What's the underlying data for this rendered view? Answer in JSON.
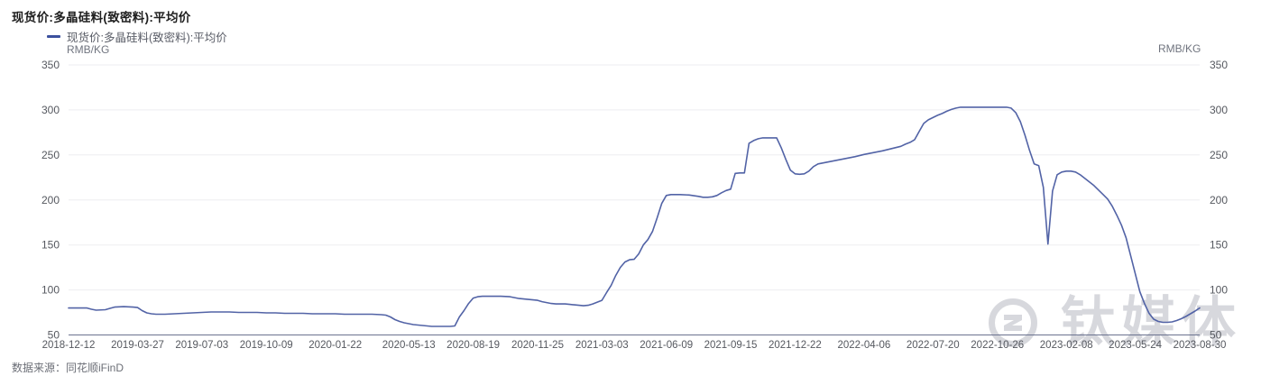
{
  "header": {
    "title": "现货价:多晶硅料(致密料):平均价"
  },
  "legend": {
    "label": "现货价:多晶硅料(致密料):平均价",
    "marker_color": "#3c509e",
    "unit_left": "RMB/KG",
    "unit_right": "RMB/KG"
  },
  "watermark": {
    "text": "钛媒体"
  },
  "footer": {
    "source_label": "数据来源：同花顺iFinD"
  },
  "colors": {
    "line": "#5263a6",
    "gridline": "#ededf0",
    "axis_line": "#6b7390",
    "axis_text": "#55585f",
    "watermark": "#d7d8dd"
  },
  "chart_data": {
    "type": "line",
    "title": "现货价:多晶硅料(致密料):平均价",
    "xlabel": "",
    "ylabel": "RMB/KG",
    "ylim": [
      50,
      350
    ],
    "y_ticks": [
      50,
      100,
      150,
      200,
      250,
      300,
      350
    ],
    "grid": true,
    "legend_position": "top-left",
    "x_tick_labels": [
      "2018-12-12",
      "2019-03-27",
      "2019-07-03",
      "2019-10-09",
      "2020-01-22",
      "2020-05-13",
      "2020-08-19",
      "2020-11-25",
      "2021-03-03",
      "2021-06-09",
      "2021-09-15",
      "2021-12-22",
      "2022-04-06",
      "2022-07-20",
      "2022-10-26",
      "2023-02-08",
      "2023-05-24",
      "2023-08-30"
    ],
    "series": [
      {
        "name": "现货价:多晶硅料(致密料):平均价",
        "color": "#5263a6",
        "points": [
          [
            "2018-12-12",
            80
          ],
          [
            "2018-12-26",
            80
          ],
          [
            "2019-01-09",
            80
          ],
          [
            "2019-01-16",
            78.5
          ],
          [
            "2019-01-23",
            77.5
          ],
          [
            "2019-02-06",
            78
          ],
          [
            "2019-02-13",
            79.5
          ],
          [
            "2019-02-20",
            81
          ],
          [
            "2019-03-06",
            81.5
          ],
          [
            "2019-03-20",
            81
          ],
          [
            "2019-03-27",
            80.5
          ],
          [
            "2019-04-03",
            77
          ],
          [
            "2019-04-10",
            74.5
          ],
          [
            "2019-04-17",
            73.5
          ],
          [
            "2019-04-24",
            73
          ],
          [
            "2019-05-08",
            73
          ],
          [
            "2019-05-22",
            73.5
          ],
          [
            "2019-06-05",
            74
          ],
          [
            "2019-06-19",
            74.5
          ],
          [
            "2019-07-03",
            75
          ],
          [
            "2019-07-17",
            75.5
          ],
          [
            "2019-07-31",
            75.5
          ],
          [
            "2019-08-14",
            75.5
          ],
          [
            "2019-08-28",
            75
          ],
          [
            "2019-09-11",
            75
          ],
          [
            "2019-09-25",
            75
          ],
          [
            "2019-10-09",
            74.5
          ],
          [
            "2019-10-23",
            74.5
          ],
          [
            "2019-11-06",
            74
          ],
          [
            "2019-11-20",
            74
          ],
          [
            "2019-12-04",
            74
          ],
          [
            "2019-12-18",
            73.5
          ],
          [
            "2020-01-08",
            73.5
          ],
          [
            "2020-01-22",
            73.5
          ],
          [
            "2020-02-05",
            73
          ],
          [
            "2020-02-19",
            73
          ],
          [
            "2020-03-04",
            73
          ],
          [
            "2020-03-18",
            73
          ],
          [
            "2020-04-01",
            72.5
          ],
          [
            "2020-04-08",
            72
          ],
          [
            "2020-04-15",
            70
          ],
          [
            "2020-04-22",
            67
          ],
          [
            "2020-04-29",
            65
          ],
          [
            "2020-05-06",
            63.5
          ],
          [
            "2020-05-13",
            62.5
          ],
          [
            "2020-05-20",
            61.5
          ],
          [
            "2020-05-27",
            61
          ],
          [
            "2020-06-03",
            60.5
          ],
          [
            "2020-06-10",
            60
          ],
          [
            "2020-06-17",
            59.5
          ],
          [
            "2020-07-01",
            59.5
          ],
          [
            "2020-07-15",
            59.5
          ],
          [
            "2020-07-22",
            60
          ],
          [
            "2020-07-29",
            70
          ],
          [
            "2020-08-05",
            77
          ],
          [
            "2020-08-12",
            85
          ],
          [
            "2020-08-19",
            91
          ],
          [
            "2020-08-26",
            92.5
          ],
          [
            "2020-09-02",
            93
          ],
          [
            "2020-09-16",
            93
          ],
          [
            "2020-09-30",
            93
          ],
          [
            "2020-10-14",
            92.5
          ],
          [
            "2020-10-21",
            91.5
          ],
          [
            "2020-10-28",
            90.5
          ],
          [
            "2020-11-11",
            89.5
          ],
          [
            "2020-11-25",
            88.5
          ],
          [
            "2020-12-02",
            87
          ],
          [
            "2020-12-09",
            86
          ],
          [
            "2020-12-16",
            85
          ],
          [
            "2020-12-23",
            84.5
          ],
          [
            "2021-01-06",
            84.5
          ],
          [
            "2021-01-13",
            84
          ],
          [
            "2021-01-20",
            83.5
          ],
          [
            "2021-01-27",
            83
          ],
          [
            "2021-02-03",
            82.5
          ],
          [
            "2021-02-10",
            83
          ],
          [
            "2021-02-17",
            84.5
          ],
          [
            "2021-02-24",
            86.5
          ],
          [
            "2021-03-03",
            88.5
          ],
          [
            "2021-03-10",
            97
          ],
          [
            "2021-03-17",
            105
          ],
          [
            "2021-03-24",
            116
          ],
          [
            "2021-03-31",
            125
          ],
          [
            "2021-04-07",
            131
          ],
          [
            "2021-04-14",
            133.5
          ],
          [
            "2021-04-21",
            134
          ],
          [
            "2021-04-28",
            140
          ],
          [
            "2021-05-05",
            150
          ],
          [
            "2021-05-12",
            156
          ],
          [
            "2021-05-19",
            165
          ],
          [
            "2021-05-26",
            180
          ],
          [
            "2021-06-02",
            196
          ],
          [
            "2021-06-09",
            205
          ],
          [
            "2021-06-16",
            206
          ],
          [
            "2021-06-30",
            206
          ],
          [
            "2021-07-14",
            205.5
          ],
          [
            "2021-07-28",
            204
          ],
          [
            "2021-08-04",
            203
          ],
          [
            "2021-08-11",
            203
          ],
          [
            "2021-08-18",
            203.5
          ],
          [
            "2021-08-25",
            205
          ],
          [
            "2021-09-01",
            208
          ],
          [
            "2021-09-08",
            210.5
          ],
          [
            "2021-09-15",
            212
          ],
          [
            "2021-09-22",
            229.5
          ],
          [
            "2021-09-29",
            230
          ],
          [
            "2021-10-06",
            230
          ],
          [
            "2021-10-13",
            263
          ],
          [
            "2021-10-20",
            266
          ],
          [
            "2021-10-27",
            268
          ],
          [
            "2021-11-03",
            269
          ],
          [
            "2021-11-17",
            269
          ],
          [
            "2021-11-24",
            269
          ],
          [
            "2021-12-01",
            258
          ],
          [
            "2021-12-08",
            245
          ],
          [
            "2021-12-15",
            233
          ],
          [
            "2021-12-22",
            229
          ],
          [
            "2021-12-29",
            228.5
          ],
          [
            "2022-01-05",
            229
          ],
          [
            "2022-01-12",
            232
          ],
          [
            "2022-01-19",
            237
          ],
          [
            "2022-01-26",
            240
          ],
          [
            "2022-02-09",
            242
          ],
          [
            "2022-02-23",
            244
          ],
          [
            "2022-03-09",
            246
          ],
          [
            "2022-03-23",
            248
          ],
          [
            "2022-04-06",
            250.5
          ],
          [
            "2022-04-20",
            252.5
          ],
          [
            "2022-05-04",
            254.5
          ],
          [
            "2022-05-18",
            257
          ],
          [
            "2022-06-01",
            259.5
          ],
          [
            "2022-06-08",
            262
          ],
          [
            "2022-06-15",
            264
          ],
          [
            "2022-06-22",
            267
          ],
          [
            "2022-06-29",
            276
          ],
          [
            "2022-07-06",
            285
          ],
          [
            "2022-07-13",
            289
          ],
          [
            "2022-07-20",
            291.5
          ],
          [
            "2022-07-27",
            294
          ],
          [
            "2022-08-03",
            296
          ],
          [
            "2022-08-10",
            298.5
          ],
          [
            "2022-08-17",
            300.5
          ],
          [
            "2022-08-24",
            302
          ],
          [
            "2022-08-31",
            303
          ],
          [
            "2022-09-14",
            303
          ],
          [
            "2022-09-28",
            303
          ],
          [
            "2022-10-12",
            303
          ],
          [
            "2022-10-26",
            303
          ],
          [
            "2022-11-09",
            303
          ],
          [
            "2022-11-16",
            302
          ],
          [
            "2022-11-23",
            297
          ],
          [
            "2022-11-30",
            287
          ],
          [
            "2022-12-07",
            272
          ],
          [
            "2022-12-14",
            255
          ],
          [
            "2022-12-21",
            240
          ],
          [
            "2022-12-28",
            238
          ],
          [
            "2023-01-04",
            214
          ],
          [
            "2023-01-11",
            151
          ],
          [
            "2023-01-18",
            210
          ],
          [
            "2023-01-25",
            228
          ],
          [
            "2023-02-01",
            231
          ],
          [
            "2023-02-08",
            232
          ],
          [
            "2023-02-15",
            232
          ],
          [
            "2023-02-22",
            231
          ],
          [
            "2023-03-01",
            228
          ],
          [
            "2023-03-08",
            224
          ],
          [
            "2023-03-15",
            220
          ],
          [
            "2023-03-22",
            216
          ],
          [
            "2023-03-29",
            211
          ],
          [
            "2023-04-05",
            206
          ],
          [
            "2023-04-12",
            201
          ],
          [
            "2023-04-19",
            193
          ],
          [
            "2023-04-26",
            183
          ],
          [
            "2023-05-03",
            172
          ],
          [
            "2023-05-10",
            158
          ],
          [
            "2023-05-17",
            138
          ],
          [
            "2023-05-24",
            118
          ],
          [
            "2023-05-31",
            98
          ],
          [
            "2023-06-07",
            85
          ],
          [
            "2023-06-14",
            74
          ],
          [
            "2023-06-21",
            67.5
          ],
          [
            "2023-06-28",
            65
          ],
          [
            "2023-07-05",
            64
          ],
          [
            "2023-07-12",
            64
          ],
          [
            "2023-07-19",
            64.5
          ],
          [
            "2023-07-26",
            66
          ],
          [
            "2023-08-02",
            68
          ],
          [
            "2023-08-09",
            70.5
          ],
          [
            "2023-08-16",
            73.5
          ],
          [
            "2023-08-23",
            76.5
          ],
          [
            "2023-08-30",
            80
          ]
        ]
      }
    ]
  }
}
